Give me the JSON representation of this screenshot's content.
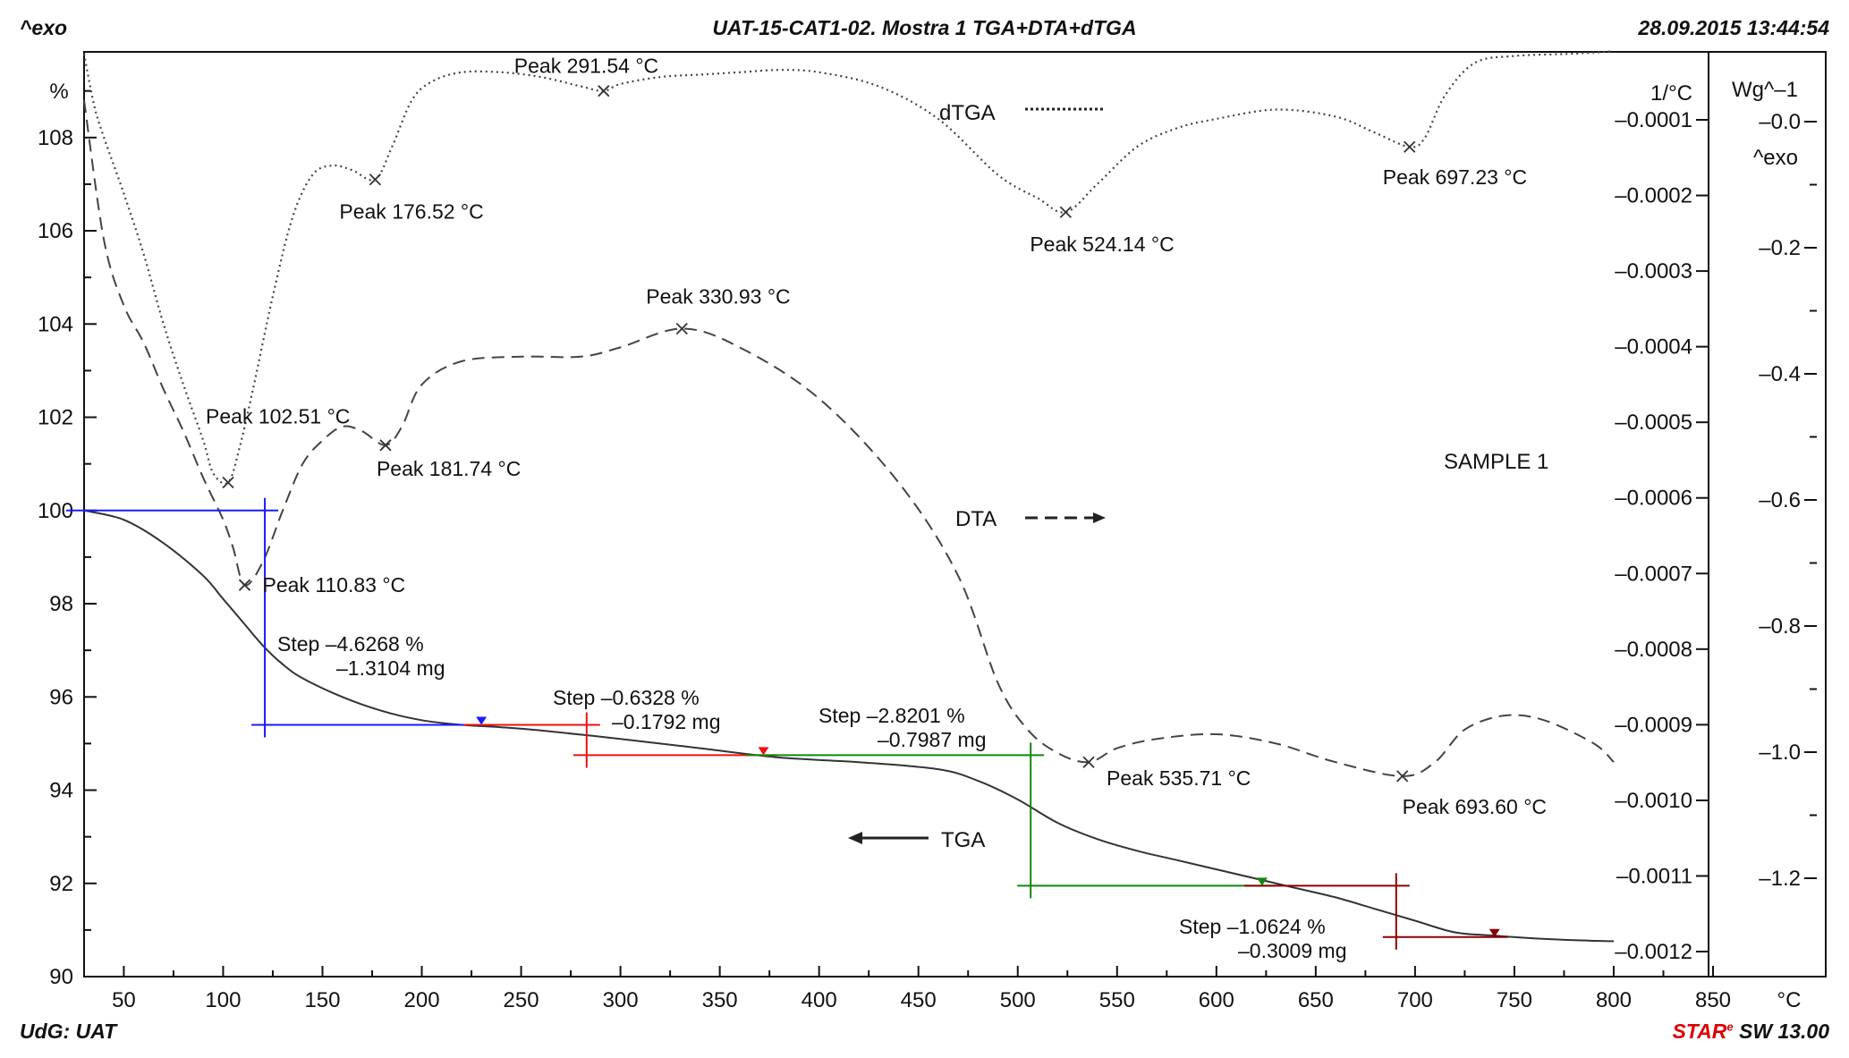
{
  "header": {
    "left": "^exo",
    "title": "UAT-15-CAT1-02. Mostra 1 TGA+DTA+dTGA",
    "datetime": "28.09.2015 13:44:54"
  },
  "footer": {
    "left": "UdG: UAT",
    "right_brand": "STAR",
    "right_brand_mark": "e",
    "right_version": " SW 13.00"
  },
  "colors": {
    "axes": "#111111",
    "tga_curve": "#333333",
    "dta_curve": "#444444",
    "dtga_curve": "#444444",
    "step1": "#1a1aff",
    "step2": "#ee1111",
    "step3": "#118811",
    "step4": "#8b0000"
  },
  "chart_data": {
    "type": "line",
    "xlabel": "°C",
    "xlim": [
      30,
      850
    ],
    "x_ticks": [
      50,
      100,
      150,
      200,
      250,
      300,
      350,
      400,
      450,
      500,
      550,
      600,
      650,
      700,
      750,
      800,
      850
    ],
    "y_left": {
      "label": "%",
      "lim": [
        90,
        109.8
      ],
      "ticks": [
        90,
        92,
        94,
        96,
        98,
        100,
        102,
        104,
        106,
        108
      ]
    },
    "y_mid": {
      "label": "1/°C",
      "sublabel": "^exo",
      "ticks": [
        "–0.0001",
        "–0.0002",
        "–0.0003",
        "–0.0004",
        "–0.0005",
        "–0.0006",
        "–0.0007",
        "–0.0008",
        "–0.0009",
        "–0.0010",
        "–0.0011",
        "–0.0012"
      ],
      "tick_values": [
        -0.0001,
        -0.0002,
        -0.0003,
        -0.0004,
        -0.0005,
        -0.0006,
        -0.0007,
        -0.0008,
        -0.0009,
        -0.001,
        -0.0011,
        -0.0012
      ]
    },
    "y_right": {
      "label": "Wg^–1",
      "ticks": [
        "–0.0",
        "–0.2",
        "–0.4",
        "–0.6",
        "–0.8",
        "–1.0",
        "–1.2"
      ],
      "tick_values": [
        0,
        -0.2,
        -0.4,
        -0.6,
        -0.8,
        -1.0,
        -1.2
      ]
    },
    "series": [
      {
        "name": "TGA",
        "x": [
          30,
          50,
          70,
          90,
          100,
          110,
          120,
          130,
          140,
          160,
          180,
          200,
          220,
          240,
          260,
          300,
          340,
          380,
          420,
          460,
          480,
          500,
          520,
          540,
          560,
          580,
          600,
          620,
          640,
          660,
          680,
          700,
          720,
          740,
          760,
          780,
          800
        ],
        "y": [
          100.0,
          99.8,
          99.3,
          98.6,
          98.1,
          97.6,
          97.1,
          96.7,
          96.4,
          96.0,
          95.7,
          95.5,
          95.4,
          95.35,
          95.28,
          95.1,
          94.9,
          94.7,
          94.6,
          94.45,
          94.2,
          93.8,
          93.3,
          92.95,
          92.7,
          92.5,
          92.3,
          92.1,
          91.9,
          91.7,
          91.45,
          91.2,
          90.95,
          90.88,
          90.82,
          90.78,
          90.76
        ]
      },
      {
        "name": "DTA",
        "x": [
          30,
          40,
          50,
          60,
          70,
          80,
          90,
          100,
          105,
          110.83,
          120,
          130,
          140,
          150,
          160,
          170,
          181.74,
          190,
          200,
          220,
          250,
          280,
          300,
          330.93,
          360,
          400,
          440,
          470,
          490,
          505,
          520,
          535.71,
          550,
          570,
          600,
          630,
          660,
          693.6,
          710,
          725,
          745,
          765,
          790,
          800
        ],
        "y": [
          108.8,
          105.8,
          104.4,
          103.6,
          102.6,
          101.7,
          100.7,
          99.8,
          99.2,
          98.4,
          98.9,
          100.0,
          101.0,
          101.5,
          101.8,
          101.7,
          101.4,
          101.8,
          102.7,
          103.2,
          103.3,
          103.3,
          103.5,
          103.9,
          103.5,
          102.4,
          100.6,
          98.6,
          96.3,
          95.3,
          94.8,
          94.6,
          94.9,
          95.1,
          95.2,
          95.0,
          94.6,
          94.3,
          94.6,
          95.3,
          95.6,
          95.5,
          95.0,
          94.6
        ]
      },
      {
        "name": "dTGA",
        "x": [
          30,
          35,
          40,
          50,
          60,
          70,
          80,
          90,
          95,
          102.51,
          108,
          115,
          125,
          135,
          145,
          155,
          165,
          176.52,
          185,
          195,
          205,
          220,
          240,
          260,
          280,
          291.54,
          300,
          320,
          340,
          360,
          380,
          400,
          430,
          460,
          490,
          510,
          524.14,
          540,
          560,
          580,
          600,
          630,
          660,
          680,
          697.23,
          705,
          715,
          730,
          750,
          780,
          800
        ],
        "y": [
          109.8,
          108.7,
          108.0,
          106.8,
          105.5,
          104.0,
          102.7,
          101.5,
          100.8,
          100.6,
          101.3,
          102.6,
          104.6,
          106.3,
          107.2,
          107.4,
          107.3,
          107.1,
          107.8,
          108.8,
          109.2,
          109.4,
          109.4,
          109.3,
          109.1,
          109.0,
          109.15,
          109.3,
          109.35,
          109.4,
          109.45,
          109.4,
          109.1,
          108.4,
          107.2,
          106.7,
          106.4,
          107.0,
          107.8,
          108.2,
          108.4,
          108.6,
          108.45,
          108.1,
          107.8,
          108.0,
          108.9,
          109.6,
          109.75,
          109.8,
          109.85
        ]
      }
    ],
    "peaks": [
      {
        "label": "Peak 291.54 °C",
        "x": 291.54
      },
      {
        "label": "Peak 176.52 °C",
        "x": 176.52
      },
      {
        "label": "Peak 524.14 °C",
        "x": 524.14
      },
      {
        "label": "Peak 697.23 °C",
        "x": 697.23
      },
      {
        "label": "Peak 330.93 °C",
        "x": 330.93
      },
      {
        "label": "Peak 102.51 °C",
        "x": 102.51
      },
      {
        "label": "Peak 181.74 °C",
        "x": 181.74
      },
      {
        "label": "Peak 110.83 °C",
        "x": 110.83
      },
      {
        "label": "Peak 535.71 °C",
        "x": 535.71
      },
      {
        "label": "Peak 693.60 °C",
        "x": 693.6
      }
    ],
    "steps": [
      {
        "line1": "Step   –4.6268 %",
        "line2": "–1.3104 mg",
        "color": "step1",
        "x_from": 30,
        "x_to": 230,
        "y_from": 100.0,
        "y_to": 95.4
      },
      {
        "line1": "Step   –0.6328 %",
        "line2": "–0.1792 mg",
        "color": "step2",
        "x_from": 230,
        "x_to": 372,
        "y_from": 95.4,
        "y_to": 94.75
      },
      {
        "line1": "Step   –2.8201 %",
        "line2": "–0.7987 mg",
        "color": "step3",
        "x_from": 372,
        "x_to": 623,
        "y_from": 94.75,
        "y_to": 91.95
      },
      {
        "line1": "Step   –1.0624 %",
        "line2": "–0.3009 mg",
        "color": "step4",
        "x_from": 623,
        "x_to": 740,
        "y_from": 91.95,
        "y_to": 90.85
      }
    ],
    "legend": [
      {
        "label": "dTGA",
        "style": "dotted"
      },
      {
        "label": "DTA",
        "style": "dashed"
      },
      {
        "label": "TGA",
        "style": "solid"
      }
    ],
    "annotations": [
      "SAMPLE 1"
    ],
    "grid": false
  }
}
